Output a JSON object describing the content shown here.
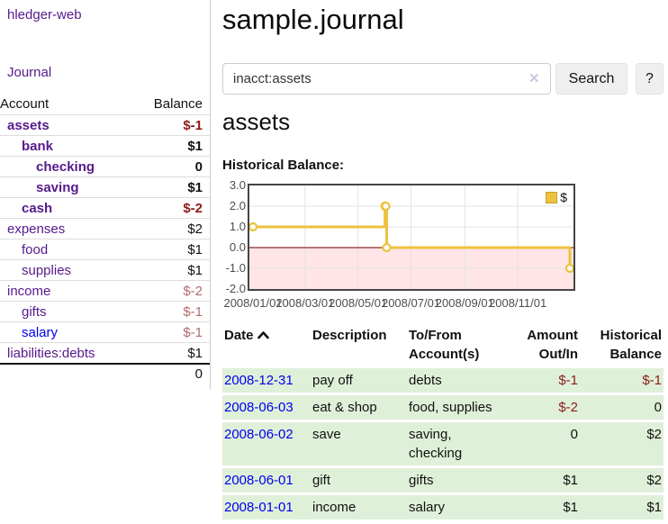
{
  "app": {
    "title": "hledger-web"
  },
  "sidebar": {
    "journal_label": "Journal",
    "table": {
      "account_header": "Account",
      "balance_header": "Balance",
      "rows": [
        {
          "account": "assets",
          "balance": "$-1"
        },
        {
          "account": "bank",
          "balance": "$1"
        },
        {
          "account": "checking",
          "balance": "0"
        },
        {
          "account": "saving",
          "balance": "$1"
        },
        {
          "account": "cash",
          "balance": "$-2"
        },
        {
          "account": "expenses",
          "balance": "$2"
        },
        {
          "account": "food",
          "balance": "$1"
        },
        {
          "account": "supplies",
          "balance": "$1"
        },
        {
          "account": "income",
          "balance": "$-2"
        },
        {
          "account": "gifts",
          "balance": "$-1"
        },
        {
          "account": "salary",
          "balance": "$-1"
        },
        {
          "account": "liabilities:debts",
          "balance": "$1"
        }
      ],
      "total": "0"
    }
  },
  "header": {
    "title": "sample.journal"
  },
  "search": {
    "value": "inacct:assets",
    "clear_icon": "✕",
    "button_label": "Search",
    "help_label": "?"
  },
  "account_page": {
    "title": "assets",
    "chart_label": "Historical Balance:"
  },
  "chart_data": {
    "type": "line",
    "step": true,
    "title": "Historical Balance:",
    "series": [
      {
        "name": "$",
        "color": "#edc240",
        "points": [
          [
            "2008-01-01",
            1
          ],
          [
            "2008-06-01",
            2
          ],
          [
            "2008-06-02",
            2
          ],
          [
            "2008-06-03",
            0
          ],
          [
            "2008-12-31",
            -1
          ]
        ]
      }
    ],
    "xrange": [
      "2008-01-01",
      "2008-12-31"
    ],
    "ylim": [
      -2,
      3
    ],
    "yticks": [
      {
        "v": 3,
        "label": "3.0"
      },
      {
        "v": 2,
        "label": "2.0"
      },
      {
        "v": 1,
        "label": "1.0"
      },
      {
        "v": 0,
        "label": "0.0"
      },
      {
        "v": -1,
        "label": "-1.0"
      },
      {
        "v": -2,
        "label": "-2.0"
      }
    ],
    "xticks": [
      {
        "date": "2008-01-01",
        "label": "2008/01/01"
      },
      {
        "date": "2008-03-01",
        "label": "2008/03/01"
      },
      {
        "date": "2008-05-01",
        "label": "2008/05/01"
      },
      {
        "date": "2008-07-01",
        "label": "2008/07/01"
      },
      {
        "date": "2008-09-01",
        "label": "2008/09/01"
      },
      {
        "date": "2008-11-01",
        "label": "2008/11/01"
      }
    ],
    "grid_on": true,
    "grid_color": "#e3e3e3",
    "negative_region_fill": "rgba(255,0,0,0.10)",
    "zero_line_color": "#8c2a2a",
    "legend": {
      "label": "$",
      "position": "top-right"
    }
  },
  "register": {
    "headers": {
      "date": "Date",
      "description": "Description",
      "tofrom": "To/From Account(s)",
      "amount": "Amount Out/In",
      "balance": "Historical Balance"
    },
    "rows": [
      {
        "date": "2008-12-31",
        "description": "pay off",
        "tofrom": "debts",
        "amount": "$-1",
        "balance": "$-1"
      },
      {
        "date": "2008-06-03",
        "description": "eat & shop",
        "tofrom": "food, supplies",
        "amount": "$-2",
        "balance": "0"
      },
      {
        "date": "2008-06-02",
        "description": "save",
        "tofrom": "saving,\nchecking",
        "amount": "0",
        "balance": "$2"
      },
      {
        "date": "2008-06-01",
        "description": "gift",
        "tofrom": "gifts",
        "amount": "$1",
        "balance": "$2"
      },
      {
        "date": "2008-01-01",
        "description": "income",
        "tofrom": "salary",
        "amount": "$1",
        "balance": "$1"
      }
    ]
  },
  "colors": {
    "link_visited_purple": "#551a8b",
    "link_blue": "#0000ee",
    "negative_strong": "#8c1b1b",
    "negative_soft": "#b36b6b",
    "row_green": "#dff0d8",
    "series_yellow": "#edc240"
  }
}
